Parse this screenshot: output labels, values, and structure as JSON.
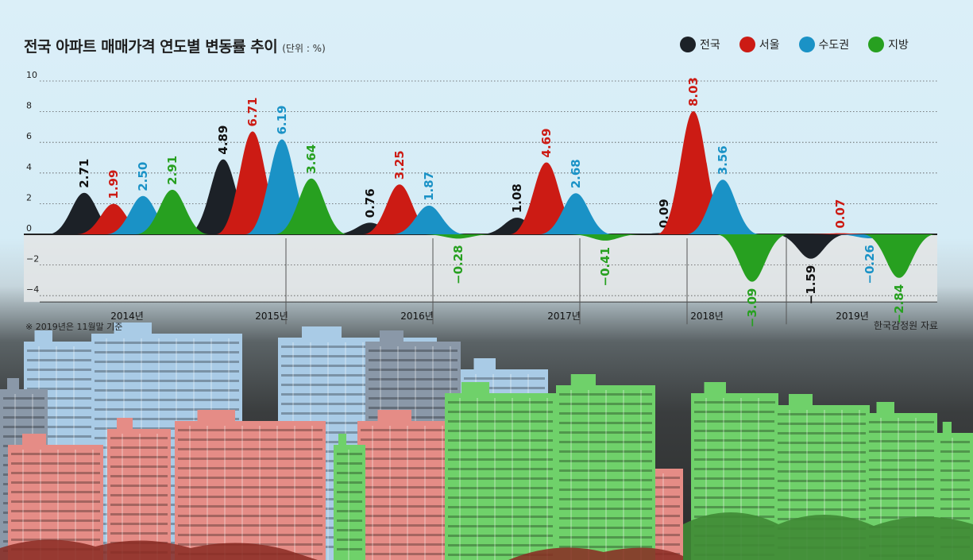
{
  "title": "전국 아파트 매매가격 연도별 변동률 추이",
  "unit": "(단위 : %)",
  "note": "※ 2019년은 11월말 기준",
  "source": "한국감정원 자료",
  "legend": [
    {
      "name": "전국",
      "color": "#1c2127"
    },
    {
      "name": "서울",
      "color": "#cc1b14"
    },
    {
      "name": "수도권",
      "color": "#1a92c6"
    },
    {
      "name": "지방",
      "color": "#27a020"
    }
  ],
  "chart_data": {
    "type": "area",
    "title": "전국 아파트 매매가격 연도별 변동률 추이",
    "unit": "(단위 : %)",
    "categories": [
      "2014년",
      "2015년",
      "2016년",
      "2017년",
      "2018년",
      "2019년"
    ],
    "series": [
      {
        "name": "전국",
        "values": [
          2.71,
          4.89,
          0.76,
          1.08,
          0.09,
          -1.59
        ]
      },
      {
        "name": "서울",
        "values": [
          1.99,
          6.71,
          3.25,
          4.69,
          8.03,
          0.07
        ]
      },
      {
        "name": "수도권",
        "values": [
          2.5,
          6.19,
          1.87,
          2.68,
          3.56,
          -0.26
        ]
      },
      {
        "name": "지방",
        "values": [
          2.91,
          3.64,
          -0.28,
          -0.41,
          -3.09,
          -2.84
        ]
      }
    ],
    "value_labels": [
      [
        "2.71",
        "4.89",
        "0.76",
        "1.08",
        "0.09",
        "−1.59"
      ],
      [
        "1.99",
        "6.71",
        "3.25",
        "4.69",
        "8.03",
        "0.07"
      ],
      [
        "2.50",
        "6.19",
        "1.87",
        "2.68",
        "3.56",
        "−0.26"
      ],
      [
        "2.91",
        "3.64",
        "−0.28",
        "−0.41",
        "−3.09",
        "−2.84"
      ]
    ],
    "yticks": [
      "10",
      "8",
      "6",
      "4",
      "2",
      "0",
      "−2",
      "−4"
    ],
    "ytick_values": [
      10,
      8,
      6,
      4,
      2,
      0,
      -2,
      -4
    ],
    "ylim": [
      -4,
      10
    ],
    "grid": true,
    "legend_position": "top-right"
  },
  "buildings": {
    "colors": {
      "gray": "#8a98a8",
      "blue": "#a9cbe6",
      "red": "#e58c86",
      "green": "#6fd16a",
      "tree": "#8a2a22"
    }
  }
}
